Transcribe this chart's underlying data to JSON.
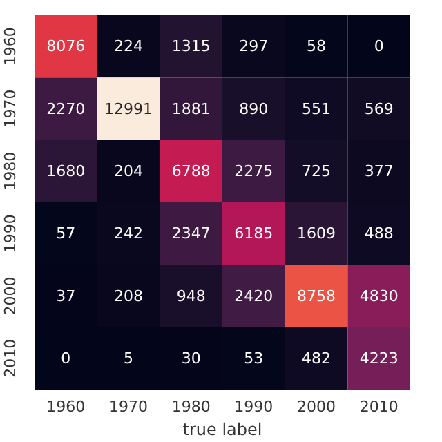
{
  "chart_data": {
    "type": "heatmap",
    "xlabel": "true label",
    "categories": [
      "1960",
      "1970",
      "1980",
      "1990",
      "2000",
      "2010"
    ],
    "y_categories": [
      "1960",
      "1970",
      "1980",
      "1990",
      "2000",
      "2010"
    ],
    "cells": [
      [
        8076,
        224,
        1315,
        297,
        58,
        0
      ],
      [
        2270,
        12991,
        1881,
        890,
        551,
        569
      ],
      [
        1680,
        204,
        6788,
        2275,
        725,
        377
      ],
      [
        57,
        242,
        2347,
        6185,
        1609,
        488
      ],
      [
        37,
        208,
        948,
        2420,
        8758,
        4830
      ],
      [
        0,
        5,
        30,
        53,
        482,
        4223
      ]
    ],
    "data_labels": true
  }
}
